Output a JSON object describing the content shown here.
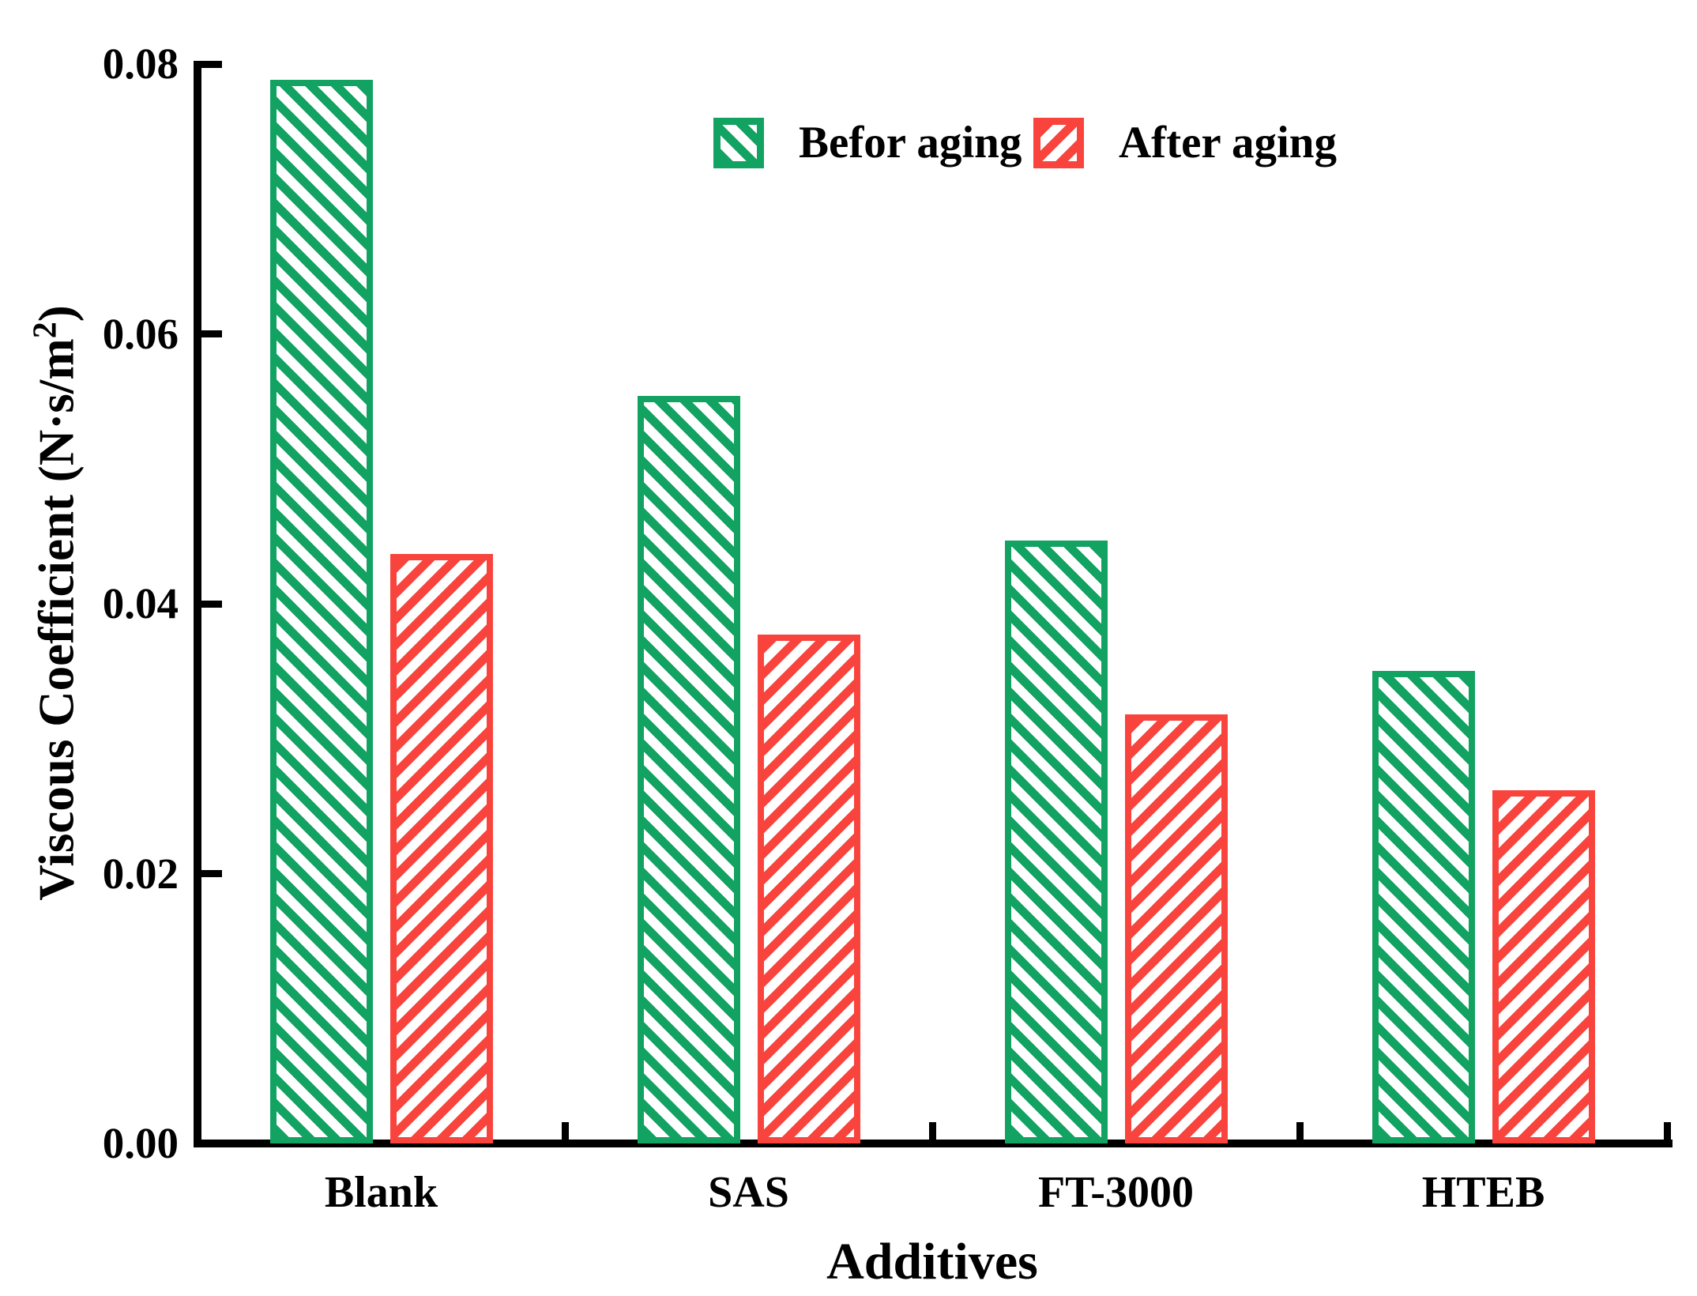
{
  "chart_data": {
    "type": "bar",
    "title": "",
    "categories": [
      "Blank",
      "SAS",
      "FT-3000",
      "HTEB"
    ],
    "series": [
      {
        "name": "Befor aging",
        "color": "#12A262",
        "hatch": "\\",
        "values": [
          0.0788,
          0.0554,
          0.0447,
          0.035
        ]
      },
      {
        "name": "After aging",
        "color": "#F9443D",
        "hatch": "/",
        "values": [
          0.0437,
          0.0377,
          0.0318,
          0.0262
        ]
      }
    ],
    "xlabel": "Additives",
    "ylabel": "Viscous Coefficient (N·s/m²)",
    "ylabel_parts": {
      "main": "Viscous Coefficient (N·s/m",
      "sup": "2",
      "suffix": ")"
    },
    "ylim": [
      0,
      0.08
    ],
    "yticks": [
      0.0,
      0.02,
      0.04,
      0.06,
      0.08
    ],
    "ytick_labels": [
      "0.00",
      "0.02",
      "0.04",
      "0.06",
      "0.08"
    ],
    "grid": false,
    "legend_position": "top-center",
    "axis_color": "#000000",
    "background_color": "#FFFFFF"
  }
}
